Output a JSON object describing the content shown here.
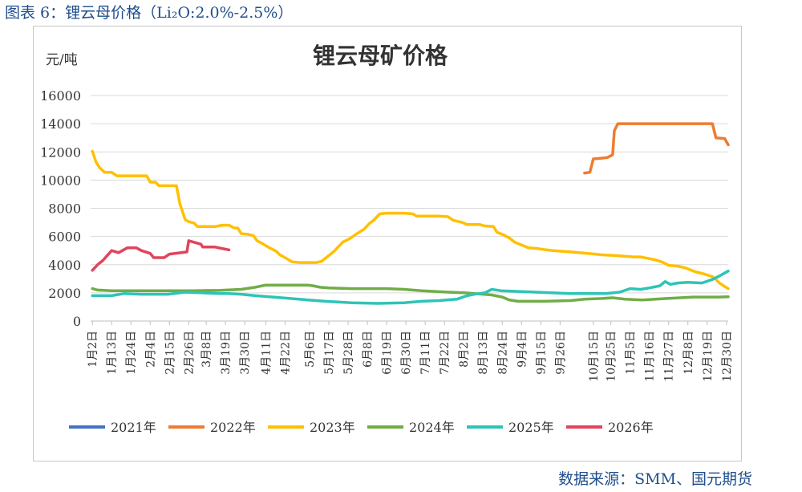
{
  "caption": "图表 6：锂云母价格（Li₂O:2.0%-2.5%）",
  "source": "数据来源：SMM、国元期货",
  "colors": {
    "axis_text": "#333333",
    "grid": "#d9d9d9",
    "caption": "#1f4e8c"
  },
  "chart_data": {
    "type": "line",
    "title": "锂云母矿价格",
    "ylabel": "元/吨",
    "xlabel": "",
    "ylim": [
      0,
      16000
    ],
    "yticks": [
      "0",
      "2000",
      "4000",
      "6000",
      "8000",
      "10000",
      "12000",
      "14000",
      "16000"
    ],
    "grid": "horizontal",
    "legend_position": "bottom",
    "day_range": [
      1,
      365
    ],
    "x_ticks": [
      {
        "label": "1月2日",
        "day": 2
      },
      {
        "label": "1月13日",
        "day": 13
      },
      {
        "label": "1月24日",
        "day": 24
      },
      {
        "label": "2月4日",
        "day": 35
      },
      {
        "label": "2月15日",
        "day": 46
      },
      {
        "label": "2月26日",
        "day": 57
      },
      {
        "label": "3月8日",
        "day": 67
      },
      {
        "label": "3月19日",
        "day": 78
      },
      {
        "label": "3月30日",
        "day": 89
      },
      {
        "label": "4月11日",
        "day": 101
      },
      {
        "label": "4月22日",
        "day": 112
      },
      {
        "label": "5月6日",
        "day": 126
      },
      {
        "label": "5月17日",
        "day": 137
      },
      {
        "label": "5月28日",
        "day": 148
      },
      {
        "label": "6月8日",
        "day": 159
      },
      {
        "label": "6月19日",
        "day": 170
      },
      {
        "label": "6月30日",
        "day": 181
      },
      {
        "label": "7月11日",
        "day": 192
      },
      {
        "label": "7月22日",
        "day": 203
      },
      {
        "label": "8月2日",
        "day": 214
      },
      {
        "label": "8月13日",
        "day": 225
      },
      {
        "label": "8月24日",
        "day": 236
      },
      {
        "label": "9月4日",
        "day": 247
      },
      {
        "label": "9月15日",
        "day": 258
      },
      {
        "label": "9月26日",
        "day": 269
      },
      {
        "label": "10月15日",
        "day": 288
      },
      {
        "label": "10月25日",
        "day": 298
      },
      {
        "label": "11月5日",
        "day": 309
      },
      {
        "label": "11月16日",
        "day": 320
      },
      {
        "label": "11月27日",
        "day": 331
      },
      {
        "label": "12月8日",
        "day": 342
      },
      {
        "label": "12月19日",
        "day": 353
      },
      {
        "label": "12月30日",
        "day": 364
      }
    ],
    "series": [
      {
        "name": "2021年",
        "color": "#4472c4",
        "points": []
      },
      {
        "name": "2022年",
        "color": "#ed7d31",
        "points": [
          [
            283,
            10500
          ],
          [
            286,
            10550
          ],
          [
            288,
            11500
          ],
          [
            292,
            11550
          ],
          [
            296,
            11600
          ],
          [
            299,
            11800
          ],
          [
            300,
            13500
          ],
          [
            302,
            14000
          ],
          [
            320,
            14000
          ],
          [
            340,
            14000
          ],
          [
            356,
            14000
          ],
          [
            358,
            13000
          ],
          [
            363,
            12950
          ],
          [
            365,
            12500
          ]
        ]
      },
      {
        "name": "2023年",
        "color": "#ffc000",
        "points": [
          [
            2,
            12050
          ],
          [
            4,
            11300
          ],
          [
            6,
            10900
          ],
          [
            9,
            10550
          ],
          [
            13,
            10550
          ],
          [
            16,
            10300
          ],
          [
            24,
            10300
          ],
          [
            33,
            10300
          ],
          [
            35,
            9850
          ],
          [
            38,
            9850
          ],
          [
            40,
            9600
          ],
          [
            50,
            9600
          ],
          [
            52,
            8300
          ],
          [
            55,
            7200
          ],
          [
            57,
            7050
          ],
          [
            60,
            6950
          ],
          [
            62,
            6700
          ],
          [
            72,
            6700
          ],
          [
            76,
            6800
          ],
          [
            80,
            6800
          ],
          [
            83,
            6600
          ],
          [
            85,
            6600
          ],
          [
            87,
            6200
          ],
          [
            91,
            6150
          ],
          [
            94,
            6050
          ],
          [
            96,
            5700
          ],
          [
            99,
            5500
          ],
          [
            103,
            5200
          ],
          [
            107,
            4950
          ],
          [
            109,
            4700
          ],
          [
            112,
            4500
          ],
          [
            116,
            4200
          ],
          [
            120,
            4150
          ],
          [
            130,
            4150
          ],
          [
            133,
            4250
          ],
          [
            136,
            4550
          ],
          [
            140,
            4950
          ],
          [
            145,
            5600
          ],
          [
            149,
            5850
          ],
          [
            153,
            6200
          ],
          [
            157,
            6500
          ],
          [
            160,
            6900
          ],
          [
            163,
            7200
          ],
          [
            166,
            7600
          ],
          [
            170,
            7650
          ],
          [
            180,
            7650
          ],
          [
            185,
            7600
          ],
          [
            187,
            7450
          ],
          [
            200,
            7450
          ],
          [
            205,
            7400
          ],
          [
            208,
            7150
          ],
          [
            213,
            7000
          ],
          [
            216,
            6850
          ],
          [
            223,
            6850
          ],
          [
            226,
            6750
          ],
          [
            231,
            6700
          ],
          [
            233,
            6300
          ],
          [
            237,
            6100
          ],
          [
            240,
            5900
          ],
          [
            243,
            5600
          ],
          [
            247,
            5400
          ],
          [
            251,
            5200
          ],
          [
            256,
            5150
          ],
          [
            261,
            5050
          ],
          [
            265,
            5000
          ],
          [
            275,
            4900
          ],
          [
            285,
            4800
          ],
          [
            293,
            4700
          ],
          [
            300,
            4650
          ],
          [
            306,
            4600
          ],
          [
            311,
            4550
          ],
          [
            315,
            4550
          ],
          [
            319,
            4450
          ],
          [
            323,
            4350
          ],
          [
            327,
            4200
          ],
          [
            331,
            3950
          ],
          [
            336,
            3900
          ],
          [
            341,
            3750
          ],
          [
            346,
            3500
          ],
          [
            351,
            3350
          ],
          [
            356,
            3150
          ],
          [
            358,
            2950
          ],
          [
            360,
            2700
          ],
          [
            363,
            2450
          ],
          [
            365,
            2300
          ]
        ]
      },
      {
        "name": "2024年",
        "color": "#70ad47",
        "points": [
          [
            2,
            2300
          ],
          [
            5,
            2200
          ],
          [
            13,
            2150
          ],
          [
            40,
            2150
          ],
          [
            60,
            2150
          ],
          [
            75,
            2180
          ],
          [
            87,
            2250
          ],
          [
            95,
            2400
          ],
          [
            101,
            2550
          ],
          [
            110,
            2550
          ],
          [
            125,
            2550
          ],
          [
            128,
            2500
          ],
          [
            132,
            2400
          ],
          [
            137,
            2350
          ],
          [
            150,
            2300
          ],
          [
            170,
            2300
          ],
          [
            180,
            2250
          ],
          [
            190,
            2150
          ],
          [
            205,
            2050
          ],
          [
            215,
            2000
          ],
          [
            230,
            1850
          ],
          [
            236,
            1700
          ],
          [
            240,
            1500
          ],
          [
            245,
            1400
          ],
          [
            260,
            1400
          ],
          [
            275,
            1450
          ],
          [
            283,
            1550
          ],
          [
            293,
            1600
          ],
          [
            299,
            1650
          ],
          [
            306,
            1550
          ],
          [
            316,
            1500
          ],
          [
            330,
            1600
          ],
          [
            345,
            1700
          ],
          [
            360,
            1700
          ],
          [
            365,
            1720
          ]
        ]
      },
      {
        "name": "2025年",
        "color": "#2ec4b6",
        "points": [
          [
            2,
            1800
          ],
          [
            13,
            1800
          ],
          [
            20,
            1950
          ],
          [
            30,
            1900
          ],
          [
            45,
            1900
          ],
          [
            55,
            2050
          ],
          [
            65,
            2000
          ],
          [
            75,
            1950
          ],
          [
            80,
            1950
          ],
          [
            87,
            1900
          ],
          [
            95,
            1800
          ],
          [
            110,
            1650
          ],
          [
            125,
            1500
          ],
          [
            135,
            1400
          ],
          [
            150,
            1300
          ],
          [
            165,
            1250
          ],
          [
            180,
            1300
          ],
          [
            190,
            1400
          ],
          [
            200,
            1450
          ],
          [
            210,
            1550
          ],
          [
            216,
            1800
          ],
          [
            220,
            1900
          ],
          [
            226,
            2000
          ],
          [
            230,
            2250
          ],
          [
            235,
            2150
          ],
          [
            245,
            2100
          ],
          [
            255,
            2050
          ],
          [
            265,
            2000
          ],
          [
            275,
            1950
          ],
          [
            285,
            1950
          ],
          [
            295,
            1950
          ],
          [
            303,
            2050
          ],
          [
            309,
            2300
          ],
          [
            315,
            2250
          ],
          [
            320,
            2350
          ],
          [
            326,
            2500
          ],
          [
            329,
            2800
          ],
          [
            332,
            2600
          ],
          [
            336,
            2700
          ],
          [
            342,
            2750
          ],
          [
            350,
            2700
          ],
          [
            356,
            2950
          ],
          [
            360,
            3200
          ],
          [
            365,
            3550
          ]
        ]
      },
      {
        "name": "2026年",
        "color": "#e0455c",
        "points": [
          [
            2,
            3600
          ],
          [
            5,
            4000
          ],
          [
            8,
            4300
          ],
          [
            13,
            5000
          ],
          [
            17,
            4850
          ],
          [
            22,
            5200
          ],
          [
            27,
            5200
          ],
          [
            30,
            5000
          ],
          [
            35,
            4800
          ],
          [
            37,
            4500
          ],
          [
            43,
            4500
          ],
          [
            46,
            4750
          ],
          [
            56,
            4900
          ],
          [
            57,
            5700
          ],
          [
            64,
            5450
          ],
          [
            65,
            5250
          ],
          [
            72,
            5250
          ],
          [
            76,
            5150
          ],
          [
            80,
            5050
          ]
        ]
      }
    ]
  }
}
